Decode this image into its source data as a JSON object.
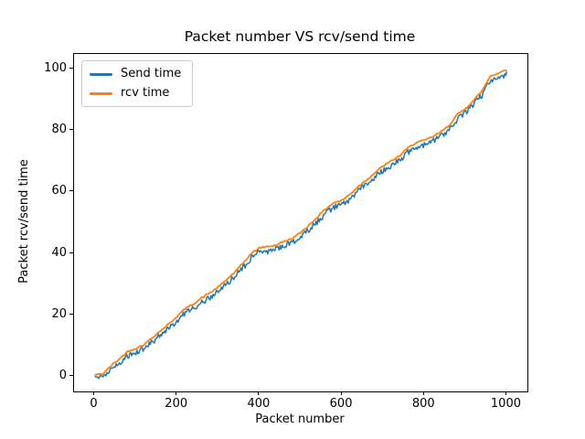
{
  "chart_data": {
    "type": "line",
    "title": "Packet number VS rcv/send time",
    "xlabel": "Packet number",
    "ylabel": "Packet rcv/send time",
    "x_start": 0,
    "x_step": 20,
    "x_end": 1000,
    "xlim": [
      -50,
      1050
    ],
    "ylim": [
      -5,
      105
    ],
    "xticks": [
      0,
      200,
      400,
      600,
      800,
      1000
    ],
    "yticks": [
      0,
      20,
      40,
      60,
      80,
      100
    ],
    "grid": false,
    "legend_position": "upper left",
    "background": "#ffffff",
    "spine_color": "#000000",
    "series": [
      {
        "name": "Send time",
        "color": "#1f77b4",
        "style": "noisy-band",
        "values": [
          0.1,
          0.2,
          2.2,
          4.4,
          6.8,
          7.9,
          9.1,
          11.4,
          13.6,
          15.8,
          18.3,
          20.8,
          22.4,
          24.3,
          26.0,
          27.8,
          30.2,
          32.7,
          35.6,
          38.8,
          40.6,
          41.0,
          41.5,
          42.7,
          43.7,
          45.6,
          48.0,
          50.6,
          53.3,
          55.3,
          56.1,
          58.1,
          60.7,
          62.8,
          65.1,
          67.3,
          68.9,
          70.6,
          73.1,
          75.0,
          75.6,
          76.8,
          78.4,
          80.5,
          84.0,
          86.1,
          88.7,
          91.8,
          96.6,
          97.6,
          98.7
        ]
      },
      {
        "name": "rcv time",
        "color": "#ff7f0e",
        "style": "upper-envelope",
        "values": [
          0.4,
          0.7,
          3.4,
          5.6,
          8.0,
          9.1,
          10.3,
          12.6,
          14.8,
          17.0,
          19.5,
          22.0,
          23.6,
          25.5,
          27.2,
          29.0,
          31.4,
          33.9,
          36.8,
          40.0,
          41.8,
          42.2,
          42.7,
          43.9,
          44.9,
          46.8,
          49.2,
          51.8,
          54.5,
          56.5,
          57.3,
          59.3,
          61.9,
          64.0,
          66.3,
          68.5,
          70.1,
          71.8,
          74.3,
          76.2,
          76.8,
          78.0,
          79.6,
          81.7,
          85.2,
          87.3,
          89.9,
          93.0,
          97.8,
          98.8,
          99.9
        ]
      }
    ],
    "appearance": {
      "band_jitter_amplitude": 1.9,
      "send_line_width": 1.5,
      "rcv_line_width": 1.8,
      "noise_seed": 11
    }
  }
}
